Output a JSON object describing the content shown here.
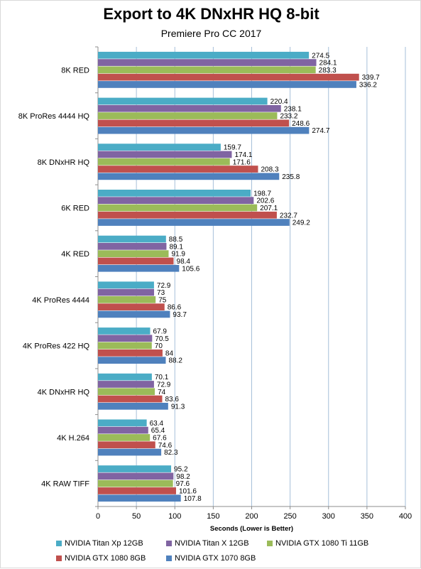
{
  "chart_data": {
    "type": "bar",
    "orientation": "horizontal",
    "title": "Export to 4K DNxHR HQ 8-bit",
    "subtitle": "Premiere Pro CC 2017",
    "xlabel": "Seconds  (Lower is Better)",
    "ylabel": "",
    "xlim": [
      0,
      400
    ],
    "xticks": [
      0,
      50,
      100,
      150,
      200,
      250,
      300,
      350,
      400
    ],
    "grid": "vertical",
    "legend_position": "bottom",
    "categories": [
      "8K RED",
      "8K ProRes 4444 HQ",
      "8K DNxHR HQ",
      "6K RED",
      "4K RED",
      "4K ProRes 4444",
      "4K ProRes 422 HQ",
      "4K DNxHR HQ",
      "4K H.264",
      "4K RAW TIFF"
    ],
    "series": [
      {
        "name": "NVIDIA Titan Xp 12GB",
        "color": "#4bacc6",
        "values": [
          274.5,
          220.4,
          159.7,
          198.7,
          88.5,
          72.9,
          67.9,
          70.1,
          63.4,
          95.2
        ]
      },
      {
        "name": "NVIDIA Titan X 12GB",
        "color": "#8064a2",
        "values": [
          284.1,
          238.1,
          174.1,
          202.6,
          89.1,
          73,
          70.5,
          72.9,
          65.4,
          98.2
        ]
      },
      {
        "name": "NVIDIA GTX 1080 Ti 11GB",
        "color": "#9bbb59",
        "values": [
          283.3,
          233.2,
          171.6,
          207.1,
          91.9,
          75,
          70,
          74,
          67.6,
          97.6
        ]
      },
      {
        "name": "NVIDIA GTX 1080 8GB",
        "color": "#c0504d",
        "values": [
          339.7,
          248.6,
          208.3,
          232.7,
          98.4,
          86.6,
          84,
          83.6,
          74.6,
          101.6
        ]
      },
      {
        "name": "NVIDIA GTX 1070 8GB",
        "color": "#4f81bd",
        "values": [
          336.2,
          274.7,
          235.8,
          249.2,
          105.6,
          93.7,
          88.2,
          91.3,
          82.3,
          107.8
        ]
      }
    ]
  }
}
